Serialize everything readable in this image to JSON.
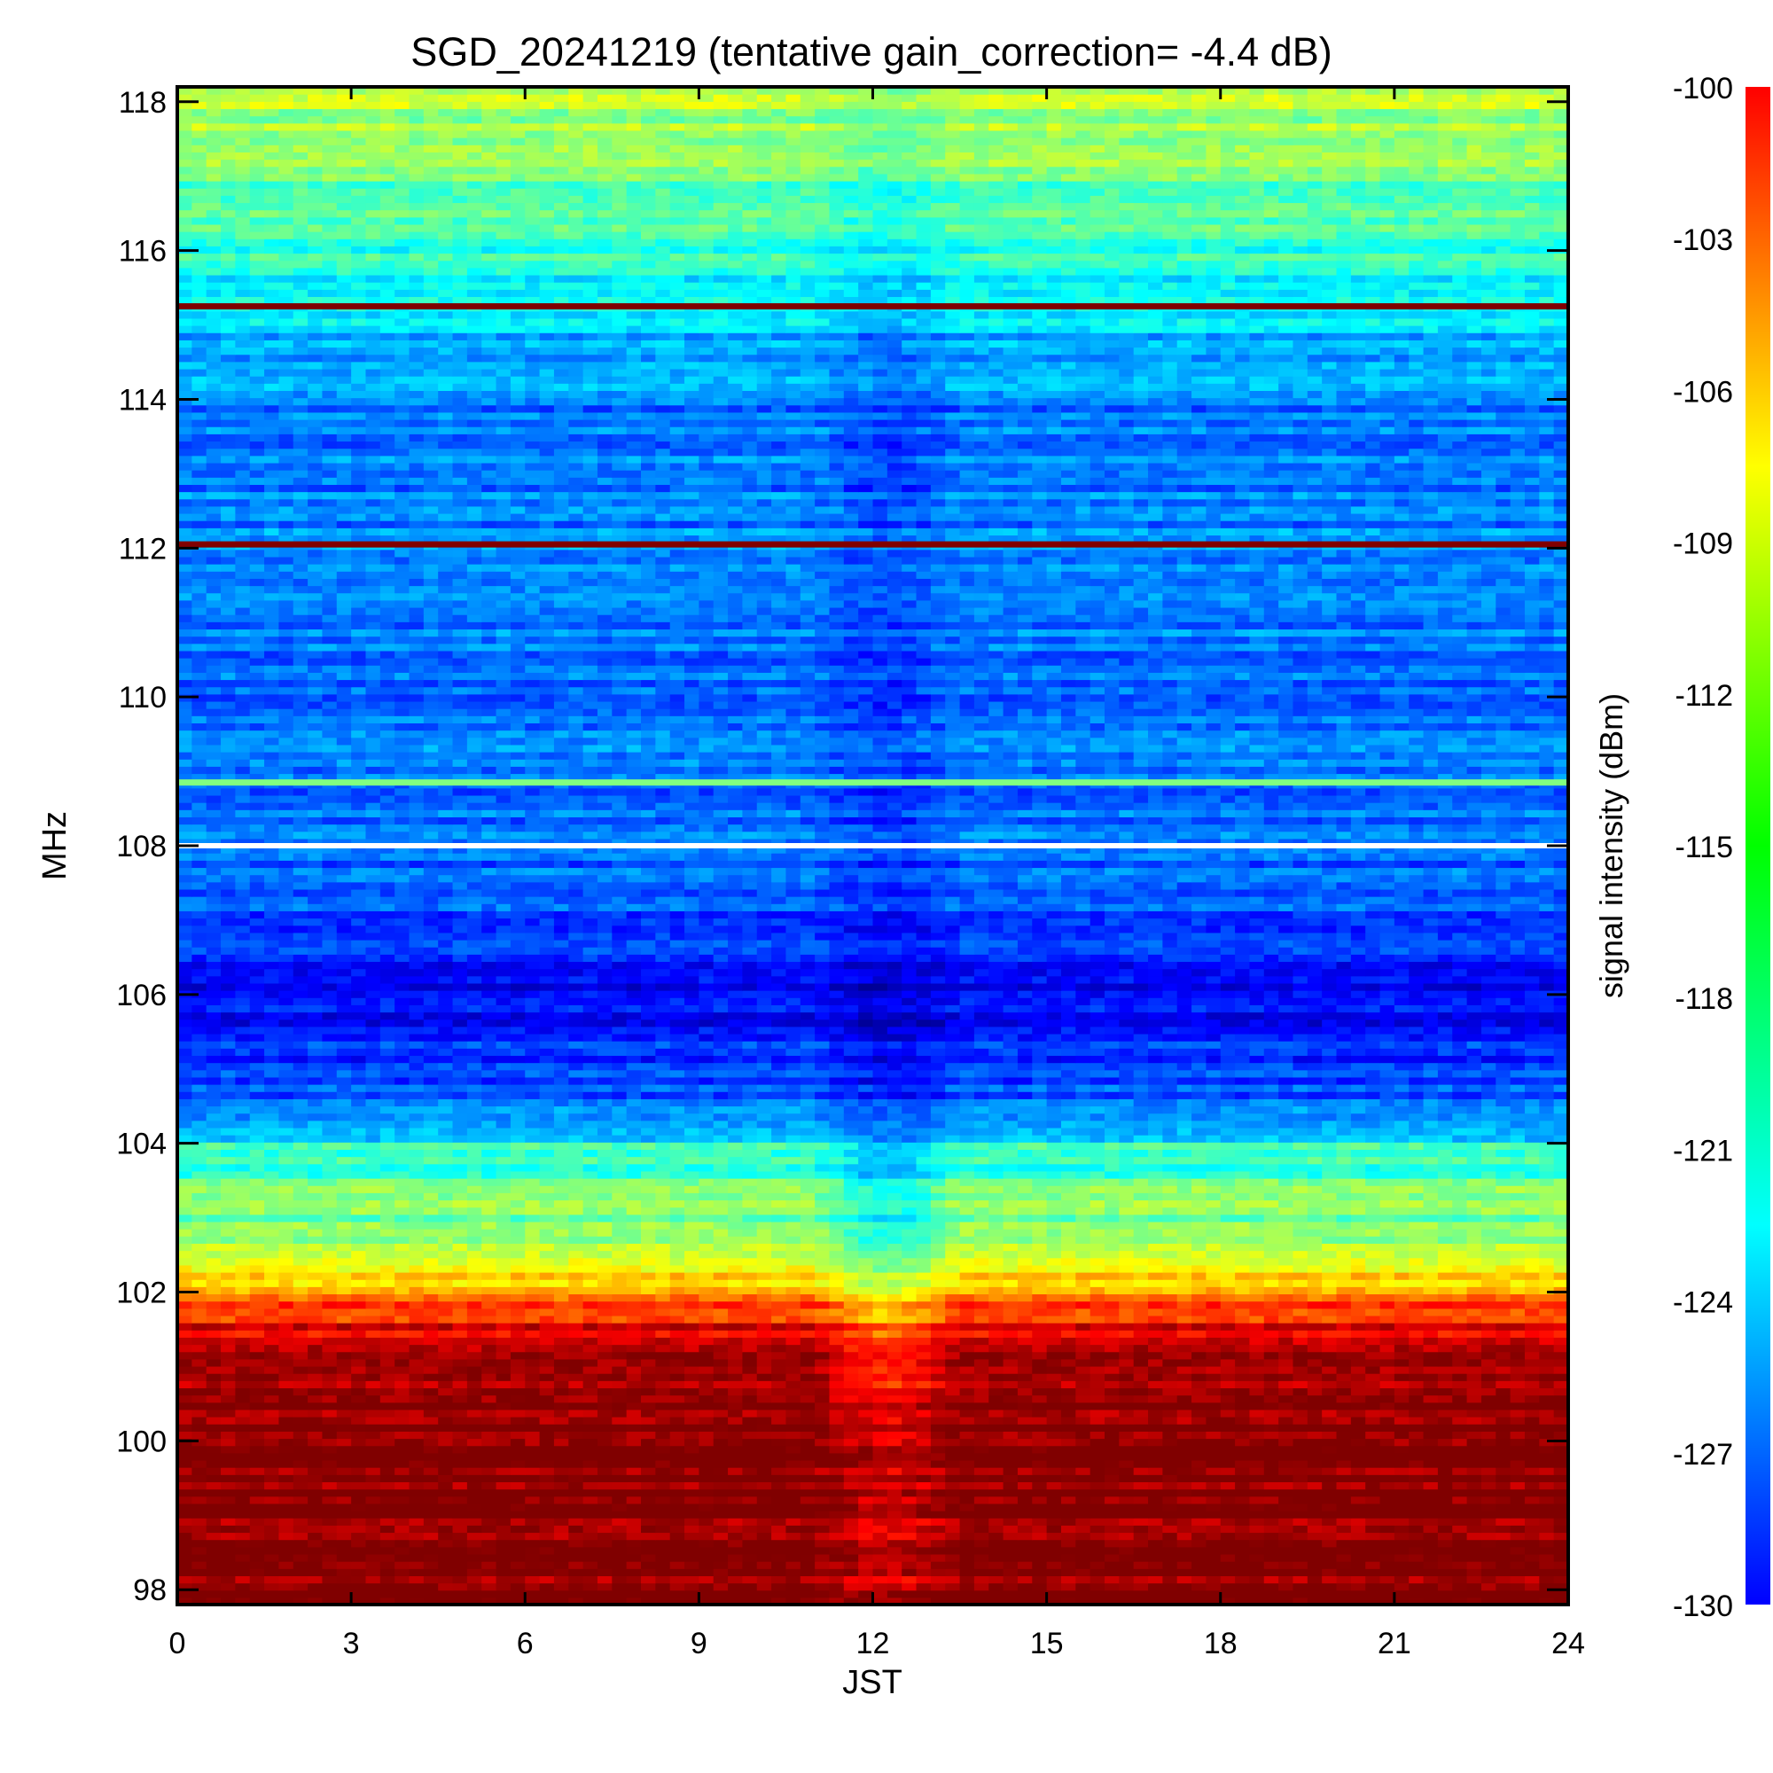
{
  "chart_data": {
    "type": "heatmap",
    "title": "SGD_20241219 (tentative gain_correction= -4.4 dB)",
    "xlabel": "JST",
    "ylabel": "MHz",
    "colorbar_label": "signal intensity (dBm)",
    "xlim": [
      0,
      24
    ],
    "ylim": [
      97.8,
      118.2
    ],
    "x_ticks": [
      0,
      3,
      6,
      9,
      12,
      15,
      18,
      21,
      24
    ],
    "y_ticks": [
      98,
      100,
      102,
      104,
      106,
      108,
      110,
      112,
      114,
      116,
      118
    ],
    "colorbar_range": [
      -130,
      -100
    ],
    "colorbar_ticks": [
      -100,
      -103,
      -106,
      -109,
      -112,
      -115,
      -118,
      -121,
      -124,
      -127,
      -130
    ],
    "colormap": "jet",
    "grid": false,
    "frequency_profile_dBm": [
      {
        "mhz": 97.8,
        "dbm": -100
      },
      {
        "mhz": 100.5,
        "dbm": -100
      },
      {
        "mhz": 101.0,
        "dbm": -101
      },
      {
        "mhz": 101.5,
        "dbm": -103
      },
      {
        "mhz": 102.0,
        "dbm": -108
      },
      {
        "mhz": 102.5,
        "dbm": -112
      },
      {
        "mhz": 103.0,
        "dbm": -115
      },
      {
        "mhz": 103.5,
        "dbm": -116
      },
      {
        "mhz": 104.0,
        "dbm": -118
      },
      {
        "mhz": 104.2,
        "dbm": -122
      },
      {
        "mhz": 105.0,
        "dbm": -125
      },
      {
        "mhz": 106.0,
        "dbm": -126
      },
      {
        "mhz": 107.0,
        "dbm": -124.5
      },
      {
        "mhz": 107.9,
        "dbm": -123
      },
      {
        "mhz": 108.1,
        "dbm": -123
      },
      {
        "mhz": 110.0,
        "dbm": -123
      },
      {
        "mhz": 112.0,
        "dbm": -122.5
      },
      {
        "mhz": 114.0,
        "dbm": -122.5
      },
      {
        "mhz": 115.5,
        "dbm": -119
      },
      {
        "mhz": 116.5,
        "dbm": -116.5
      },
      {
        "mhz": 117.5,
        "dbm": -114.5
      },
      {
        "mhz": 118.2,
        "dbm": -113
      }
    ],
    "persistent_lines": [
      {
        "mhz": 115.25,
        "dbm": -100
      },
      {
        "mhz": 112.05,
        "dbm": -100
      },
      {
        "mhz": 108.85,
        "dbm": -115
      }
    ],
    "gap_mhz": 108.0,
    "midday_feature_jst": [
      11,
      13.5
    ]
  }
}
